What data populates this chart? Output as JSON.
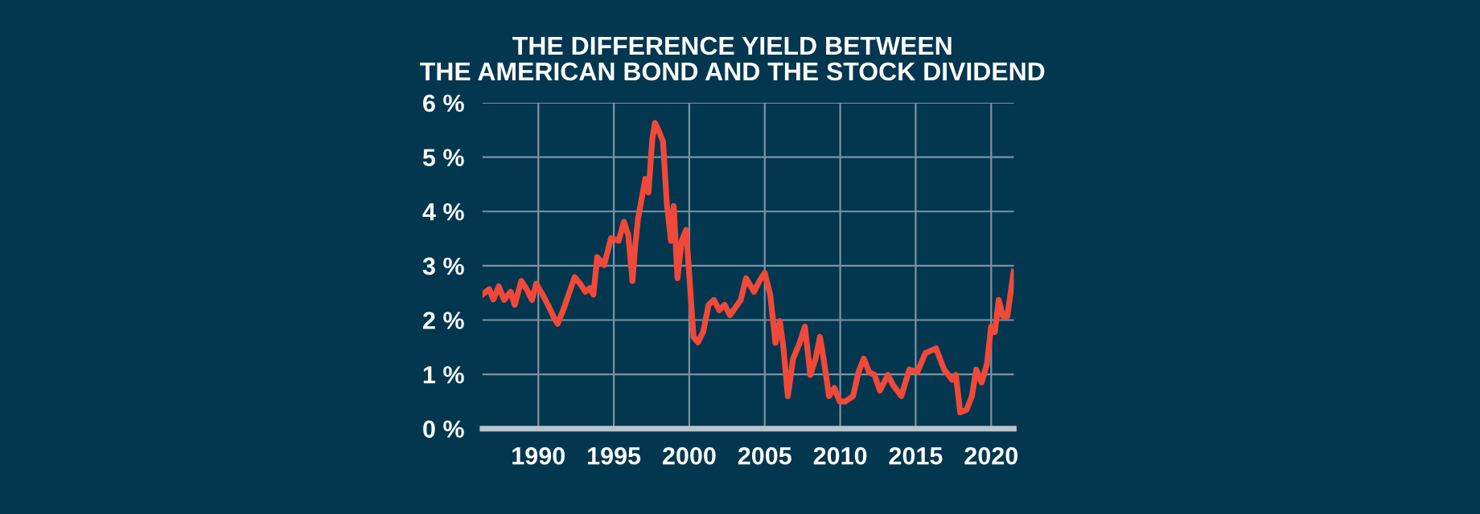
{
  "chart_data": {
    "type": "line",
    "title": "THE DIFFERENCE YIELD BETWEEN\nTHE AMERICAN BOND AND THE STOCK DIVIDEND",
    "series": [
      {
        "color": "#f0493a",
        "x": [
          1986.3,
          1986.74,
          1987.02,
          1987.38,
          1987.73,
          1988.16,
          1988.44,
          1988.87,
          1989.22,
          1989.58,
          1989.86,
          1990.28,
          1990.64,
          1991.06,
          1991.28,
          1991.7,
          1992.13,
          1992.41,
          1992.77,
          1993.12,
          1993.41,
          1993.65,
          1993.9,
          1994.36,
          1994.82,
          1995.32,
          1995.67,
          1995.96,
          1996.24,
          1996.38,
          1996.6,
          1997.09,
          1997.3,
          1997.55,
          1997.73,
          1997.91,
          1998.26,
          1998.51,
          1998.79,
          1998.97,
          1999.22,
          1999.5,
          1999.79,
          2000.04,
          2000.28,
          2000.57,
          2000.92,
          2001.28,
          2001.63,
          2001.99,
          2002.34,
          2002.7,
          2003.41,
          2003.76,
          2004.29,
          2004.65,
          2005.0,
          2005.36,
          2005.71,
          2006.0,
          2006.24,
          2006.53,
          2006.88,
          2007.31,
          2007.66,
          2008.02,
          2008.37,
          2008.66,
          2008.9,
          2009.26,
          2009.61,
          2009.97,
          2010.32,
          2010.85,
          2011.21,
          2011.56,
          2011.92,
          2012.27,
          2012.63,
          2013.16,
          2013.51,
          2014.05,
          2014.58,
          2015.11,
          2015.64,
          2016.35,
          2016.88,
          2017.41,
          2017.66,
          2017.95,
          2018.37,
          2018.73,
          2019.01,
          2019.37,
          2019.72,
          2020.0,
          2020.25,
          2020.5,
          2020.78,
          2021.07,
          2021.49
        ],
        "values": [
          2.47,
          2.57,
          2.38,
          2.62,
          2.37,
          2.52,
          2.28,
          2.72,
          2.57,
          2.37,
          2.67,
          2.47,
          2.28,
          2.03,
          1.93,
          2.22,
          2.57,
          2.79,
          2.67,
          2.52,
          2.59,
          2.47,
          3.16,
          3.01,
          3.51,
          3.46,
          3.81,
          3.56,
          2.72,
          3.25,
          3.86,
          4.6,
          4.35,
          5.33,
          5.63,
          5.53,
          5.29,
          4.15,
          3.46,
          4.1,
          2.77,
          3.46,
          3.66,
          2.67,
          1.69,
          1.59,
          1.78,
          2.28,
          2.37,
          2.18,
          2.28,
          2.09,
          2.37,
          2.77,
          2.52,
          2.72,
          2.87,
          2.47,
          1.58,
          1.98,
          1.48,
          0.6,
          1.29,
          1.58,
          1.88,
          0.99,
          1.29,
          1.69,
          1.29,
          0.6,
          0.75,
          0.5,
          0.5,
          0.6,
          1.04,
          1.29,
          1.04,
          0.99,
          0.7,
          0.99,
          0.8,
          0.6,
          1.09,
          1.04,
          1.39,
          1.48,
          1.09,
          0.9,
          0.99,
          0.3,
          0.35,
          0.6,
          1.09,
          0.85,
          1.19,
          1.88,
          1.78,
          2.37,
          2.07,
          2.07,
          2.89
        ]
      }
    ],
    "xlim": [
      1986.3,
      2021.5
    ],
    "xticks": [
      1990,
      1995,
      2000,
      2005,
      2010,
      2015,
      2020
    ],
    "ylim": [
      0,
      6
    ],
    "yticks": [
      {
        "value": 0,
        "label": "0 %"
      },
      {
        "value": 1,
        "label": "1 %"
      },
      {
        "value": 2,
        "label": "2 %"
      },
      {
        "value": 3,
        "label": "3 %"
      },
      {
        "value": 4,
        "label": "4 %"
      },
      {
        "value": 5,
        "label": "5 %"
      },
      {
        "value": 6,
        "label": "6 %"
      }
    ],
    "grid": true,
    "legend": false,
    "marker": "none",
    "line_style": "solid"
  }
}
